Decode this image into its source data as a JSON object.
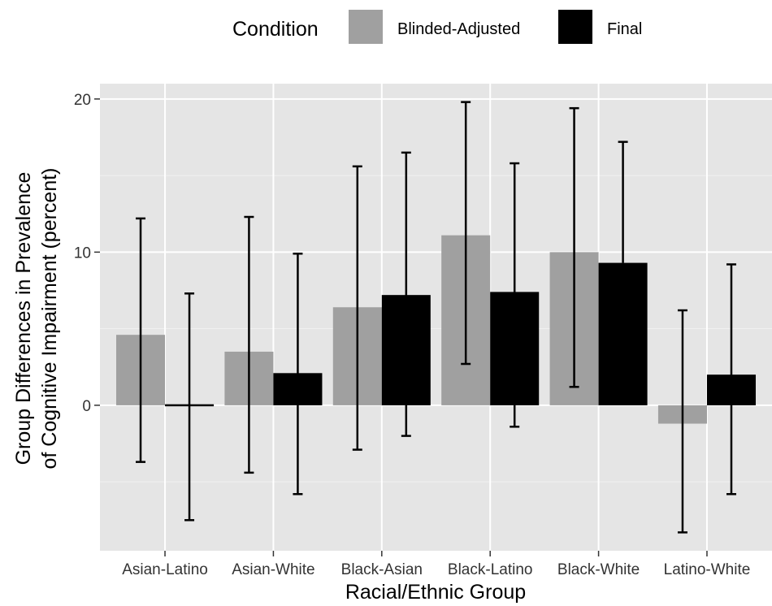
{
  "chart_data": {
    "type": "bar",
    "title": "",
    "xlabel": "Racial/Ethnic Group",
    "ylabel_lines": [
      "Group Differences in Prevalence",
      "of Cognitive Impairment (percent)"
    ],
    "categories": [
      "Asian-Latino",
      "Asian-White",
      "Black-Asian",
      "Black-Latino",
      "Black-White",
      "Latino-White"
    ],
    "ylim": [
      -9.5,
      21
    ],
    "yticks": [
      0,
      10,
      20
    ],
    "grid": true,
    "legend": {
      "title": "Condition",
      "position": "top",
      "entries": [
        "Blinded-Adjusted",
        "Final"
      ]
    },
    "series": [
      {
        "name": "Blinded-Adjusted",
        "color": "#a0a0a0",
        "values": [
          4.6,
          3.5,
          6.4,
          11.1,
          10.0,
          -1.2
        ],
        "lower": [
          -3.7,
          -4.4,
          -2.9,
          2.7,
          1.2,
          -8.3
        ],
        "upper": [
          12.2,
          12.3,
          15.6,
          19.8,
          19.4,
          6.2
        ]
      },
      {
        "name": "Final",
        "color": "#000000",
        "values": [
          0.1,
          2.1,
          7.2,
          7.4,
          9.3,
          2.0
        ],
        "lower": [
          -7.5,
          -5.8,
          -2.0,
          -1.4,
          null,
          -5.8
        ],
        "upper": [
          7.3,
          9.9,
          16.5,
          15.8,
          17.2,
          9.2
        ]
      }
    ]
  }
}
